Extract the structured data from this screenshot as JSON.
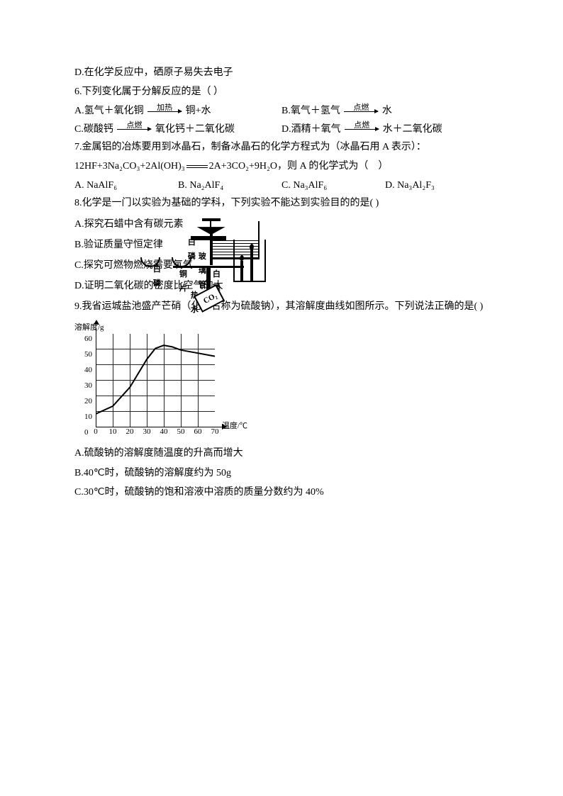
{
  "q5_optD": "D.在化学反应中，硒原子易失去电子",
  "q6": {
    "stem": "6.下列变化属于分解反应的是（ ）",
    "A_left": "A.氢气＋氧化铜",
    "A_cond": "加热",
    "A_right": "铜+水",
    "B_left": "B.氧气＋氢气",
    "B_cond": "点燃",
    "B_right": "水",
    "C_left": "C.碳酸钙",
    "C_cond": "点燃",
    "C_right": "氧化钙＋二氧化碳",
    "D_left": "D.酒精＋氧气",
    "D_cond": "点燃",
    "D_right": "水＋二氧化碳"
  },
  "q7": {
    "stem": "7.金属铝的冶炼要用到冰晶石，制备冰晶石的化学方程式为（冰晶石用 A 表示）：",
    "eq_l": "12HF+3Na₂CO₃+2Al(OH)₃",
    "eq_r": "2A+3CO₂+9H₂O，则 A 的化学式为（　）",
    "A": "A. NaAlF₆",
    "B": "B. Na₂AlF₄",
    "C": "C. Na₃AlF₆",
    "D": "D. Na₃Al₂F₃"
  },
  "q8": {
    "stem": "8.化学是一门以实验为基础的学科，下列实验不能达到实验目的的是(   )",
    "A": "A.探究石蜡中含有碳元素",
    "B": "B.验证质量守恒定律",
    "B_lbl_glass": "玻璃管",
    "B_lbl_wp": "白磷",
    "C": "C.探究可燃物燃烧需要氧气",
    "C_lbl_wp": "白磷",
    "C_lbl_cu": "铜片",
    "C_lbl_hot": "热水",
    "C_lbl_wp2": "白磷",
    "D": "D.证明二氧化碳的密度比空气的大",
    "D_co2": "CO₂"
  },
  "q9": {
    "stem": "9.我省运城盐池盛产芒硝（化学名称为硫酸钠），其溶解度曲线如图所示。下列说法正确的是(   )",
    "A": "A.硫酸钠的溶解度随温度的升高而增大",
    "B": "B.40℃时，硫酸钠的溶解度约为 50g",
    "C": "C.30℃时，硫酸钠的饱和溶液中溶质的质量分数约为 40%",
    "chart": {
      "type": "line",
      "ylabel": "溶解度/g",
      "xlabel": "温度/℃",
      "xlim": [
        0,
        70
      ],
      "ylim": [
        0,
        60
      ],
      "xtick_step": 10,
      "ytick_step": 10,
      "xticks": [
        0,
        10,
        20,
        30,
        40,
        50,
        60,
        70
      ],
      "yticks": [
        0,
        10,
        20,
        30,
        40,
        50,
        60
      ],
      "background_color": "#ffffff",
      "grid_color": "#000000",
      "line_color": "#000000",
      "line_width": 2,
      "points": [
        [
          0,
          5
        ],
        [
          10,
          10
        ],
        [
          20,
          22
        ],
        [
          30,
          40
        ],
        [
          35,
          47
        ],
        [
          40,
          49
        ],
        [
          45,
          48
        ],
        [
          50,
          46
        ],
        [
          60,
          44
        ],
        [
          70,
          42
        ]
      ]
    }
  }
}
